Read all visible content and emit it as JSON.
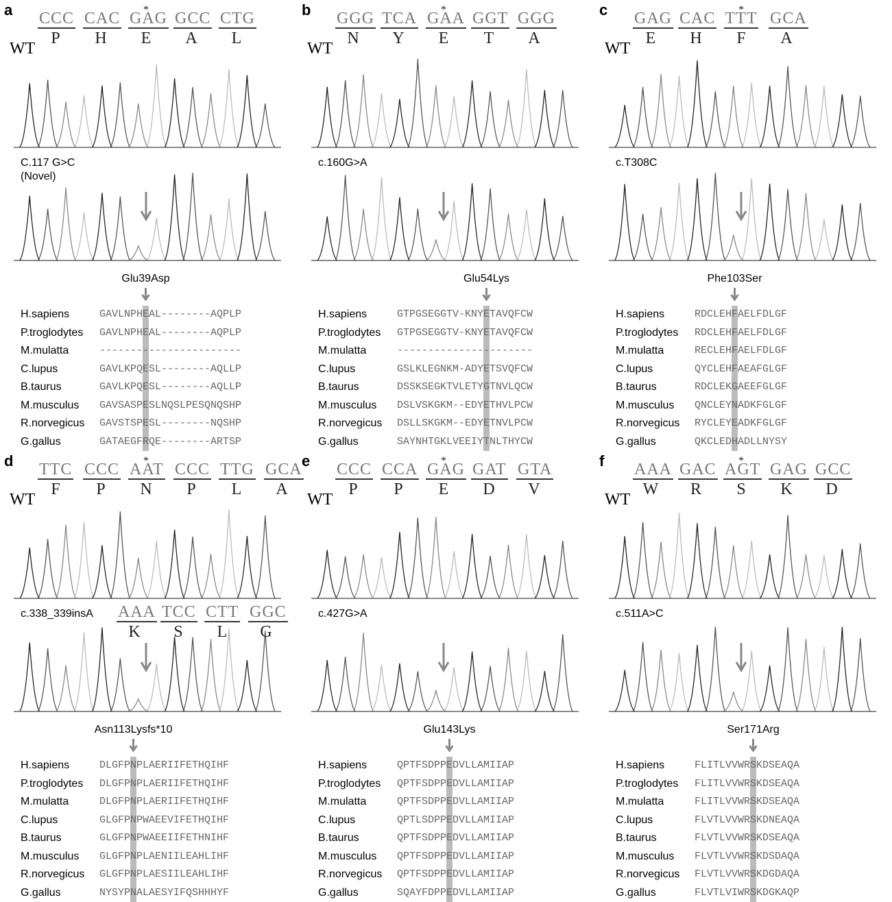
{
  "wt_label": "WT",
  "species": [
    "H.sapiens",
    "P.troglodytes",
    "M.mulatta",
    "C.lupus",
    "B.taurus",
    "M.musculus",
    "R.norvegicus",
    "G.gallus"
  ],
  "panels": [
    {
      "letter": "a",
      "codons": [
        {
          "seq": "CCC",
          "aa": "P"
        },
        {
          "seq": "CAC",
          "aa": "H"
        },
        {
          "seq": "GAG",
          "aa": "E",
          "marker": "*"
        },
        {
          "seq": "GCC",
          "aa": "A"
        },
        {
          "seq": "CTG",
          "aa": "L"
        }
      ],
      "mutation": [
        "C.117 G>C",
        "(Novel)"
      ],
      "protein_change": "Glu39Asp",
      "highlight_column": 7,
      "alignment": [
        "GAVLNPHEAL--------AQPLP",
        "GAVLNPHEAL--------AQPLP",
        "-----------------------",
        "GAVLKPQESL--------AQLLP",
        "GAVLKPQESL--------AQLLP",
        "GAVSASPESLNQSLPESQNQSHP",
        "GAVSTSPESL--------NQSHP",
        "GATAEGFRQE--------ARTSP"
      ]
    },
    {
      "letter": "b",
      "codons": [
        {
          "seq": "GGG",
          "aa": "N"
        },
        {
          "seq": "TCA",
          "aa": "Y"
        },
        {
          "seq": "GAA",
          "aa": "E",
          "marker": "*"
        },
        {
          "seq": "GGT",
          "aa": "T"
        },
        {
          "seq": "GGG",
          "aa": "A"
        }
      ],
      "mutation": [
        "c.160G>A"
      ],
      "protein_change": "Glu54Lys",
      "highlight_column": 14,
      "alignment": [
        "GTPGSEGGTV-KNYETAVQFCW",
        "GTPGSEGGTV-KNYETAVQFCW",
        "----------------------",
        "GSLKLEGNKM-ADYETSVQFCW",
        "DSSKSEGKTVLETYGTNVLQCW",
        "DSLVSKGKM--EDYETHVLPCW",
        "DSLLSKGKM--EDYETNVLPCW",
        "SAYNHTGKLVEEIYTNLTHYCW"
      ]
    },
    {
      "letter": "c",
      "codons": [
        {
          "seq": "GAG",
          "aa": "E"
        },
        {
          "seq": "CAC",
          "aa": "H"
        },
        {
          "seq": "TTT",
          "aa": "F",
          "marker": "*"
        },
        {
          "seq": "GCA",
          "aa": "A"
        }
      ],
      "mutation": [
        "c.T308C"
      ],
      "protein_change": "Phe103Ser",
      "highlight_column": 6,
      "alignment": [
        "RDCLEHFAELFDLGF",
        "RDCLEHFAELFDLGF",
        "RECLEHFAELFDLGF",
        "QYCLEHFAEAFGLGF",
        "RDCLEKGAEEFGLGF",
        "QNCLEYNADKFGLGF",
        "RYCLEYEADKFGLGF",
        "QKCLEDHADLLNYSY"
      ]
    },
    {
      "letter": "d",
      "codons": [
        {
          "seq": "TTC",
          "aa": "F"
        },
        {
          "seq": "CCC",
          "aa": "P"
        },
        {
          "seq": "AAT",
          "aa": "N",
          "marker": "*"
        },
        {
          "seq": "CCC",
          "aa": "P"
        },
        {
          "seq": "TTG",
          "aa": "L"
        },
        {
          "seq": "GCA",
          "aa": "A"
        }
      ],
      "mutation": [
        "c.338_339insA"
      ],
      "inserted_codons": [
        {
          "seq": "AAA",
          "aa": "K"
        },
        {
          "seq": "TCC",
          "aa": "S"
        },
        {
          "seq": "CTT",
          "aa": "L"
        },
        {
          "seq": "GGC",
          "aa": "G"
        }
      ],
      "protein_change": "Asn113Lysfs*10",
      "highlight_column": 5,
      "alignment": [
        "DLGFPNPLAERIIFETHQIHF",
        "DLGFPNPLAERIIFETHQIHF",
        "DLGFPNPLAERIIFETHQIHF",
        "GLGFPNPWAEEVIFETHQIHF",
        "GLGFPNPWAEEIIFETHNIHF",
        "GLGFPNPLAENIILEAHLIHF",
        "GLGFPNPLAESIILEAHLIHF",
        "NYSYPNALAESYIFQSHHHYF"
      ]
    },
    {
      "letter": "e",
      "codons": [
        {
          "seq": "CCC",
          "aa": "P"
        },
        {
          "seq": "CCA",
          "aa": "P"
        },
        {
          "seq": "GAG",
          "aa": "E",
          "marker": "*"
        },
        {
          "seq": "GAT",
          "aa": "D"
        },
        {
          "seq": "GTA",
          "aa": "V"
        }
      ],
      "mutation": [
        "c.427G>A"
      ],
      "protein_change": "Glu143Lys",
      "highlight_column": 8,
      "alignment": [
        "QPTFSDPPEDVLLAMIIAP",
        "QPTFSDPPEDVLLAMIIAP",
        "QPTFSDPPEDVLLAMIIAP",
        "QPTLSDPPEDVLLAMIIAP",
        "QPTFSDPPEDVLLAMIIAP",
        "QPTFSDPPEDVLLAMIIAP",
        "QPTFSDPPEDVLLAMIIAP",
        "SQAYFDPPEDVLLAMIIAP"
      ]
    },
    {
      "letter": "f",
      "codons": [
        {
          "seq": "AAA",
          "aa": "W"
        },
        {
          "seq": "GAC",
          "aa": "R"
        },
        {
          "seq": "AGT",
          "aa": "S",
          "marker": "*"
        },
        {
          "seq": "GAG",
          "aa": "K"
        },
        {
          "seq": "GCC",
          "aa": "D"
        }
      ],
      "mutation": [
        "c.511A>C"
      ],
      "protein_change": "Ser171Arg",
      "highlight_column": 9,
      "alignment": [
        "FLITLVVWRSKDSEAQA",
        "FLITLVVWRSKDSEAQA",
        "FLITLVVWRSKDSEAQA",
        "FLVTLVVWRSKDNEAQA",
        "FLVTLVVWRSKDSEAQA",
        "FLVTLVVWRSKDSDAQA",
        "FLVTLVVWRSKDGDAQA",
        "FLVTLVIWRSKDGKAQP"
      ]
    }
  ]
}
